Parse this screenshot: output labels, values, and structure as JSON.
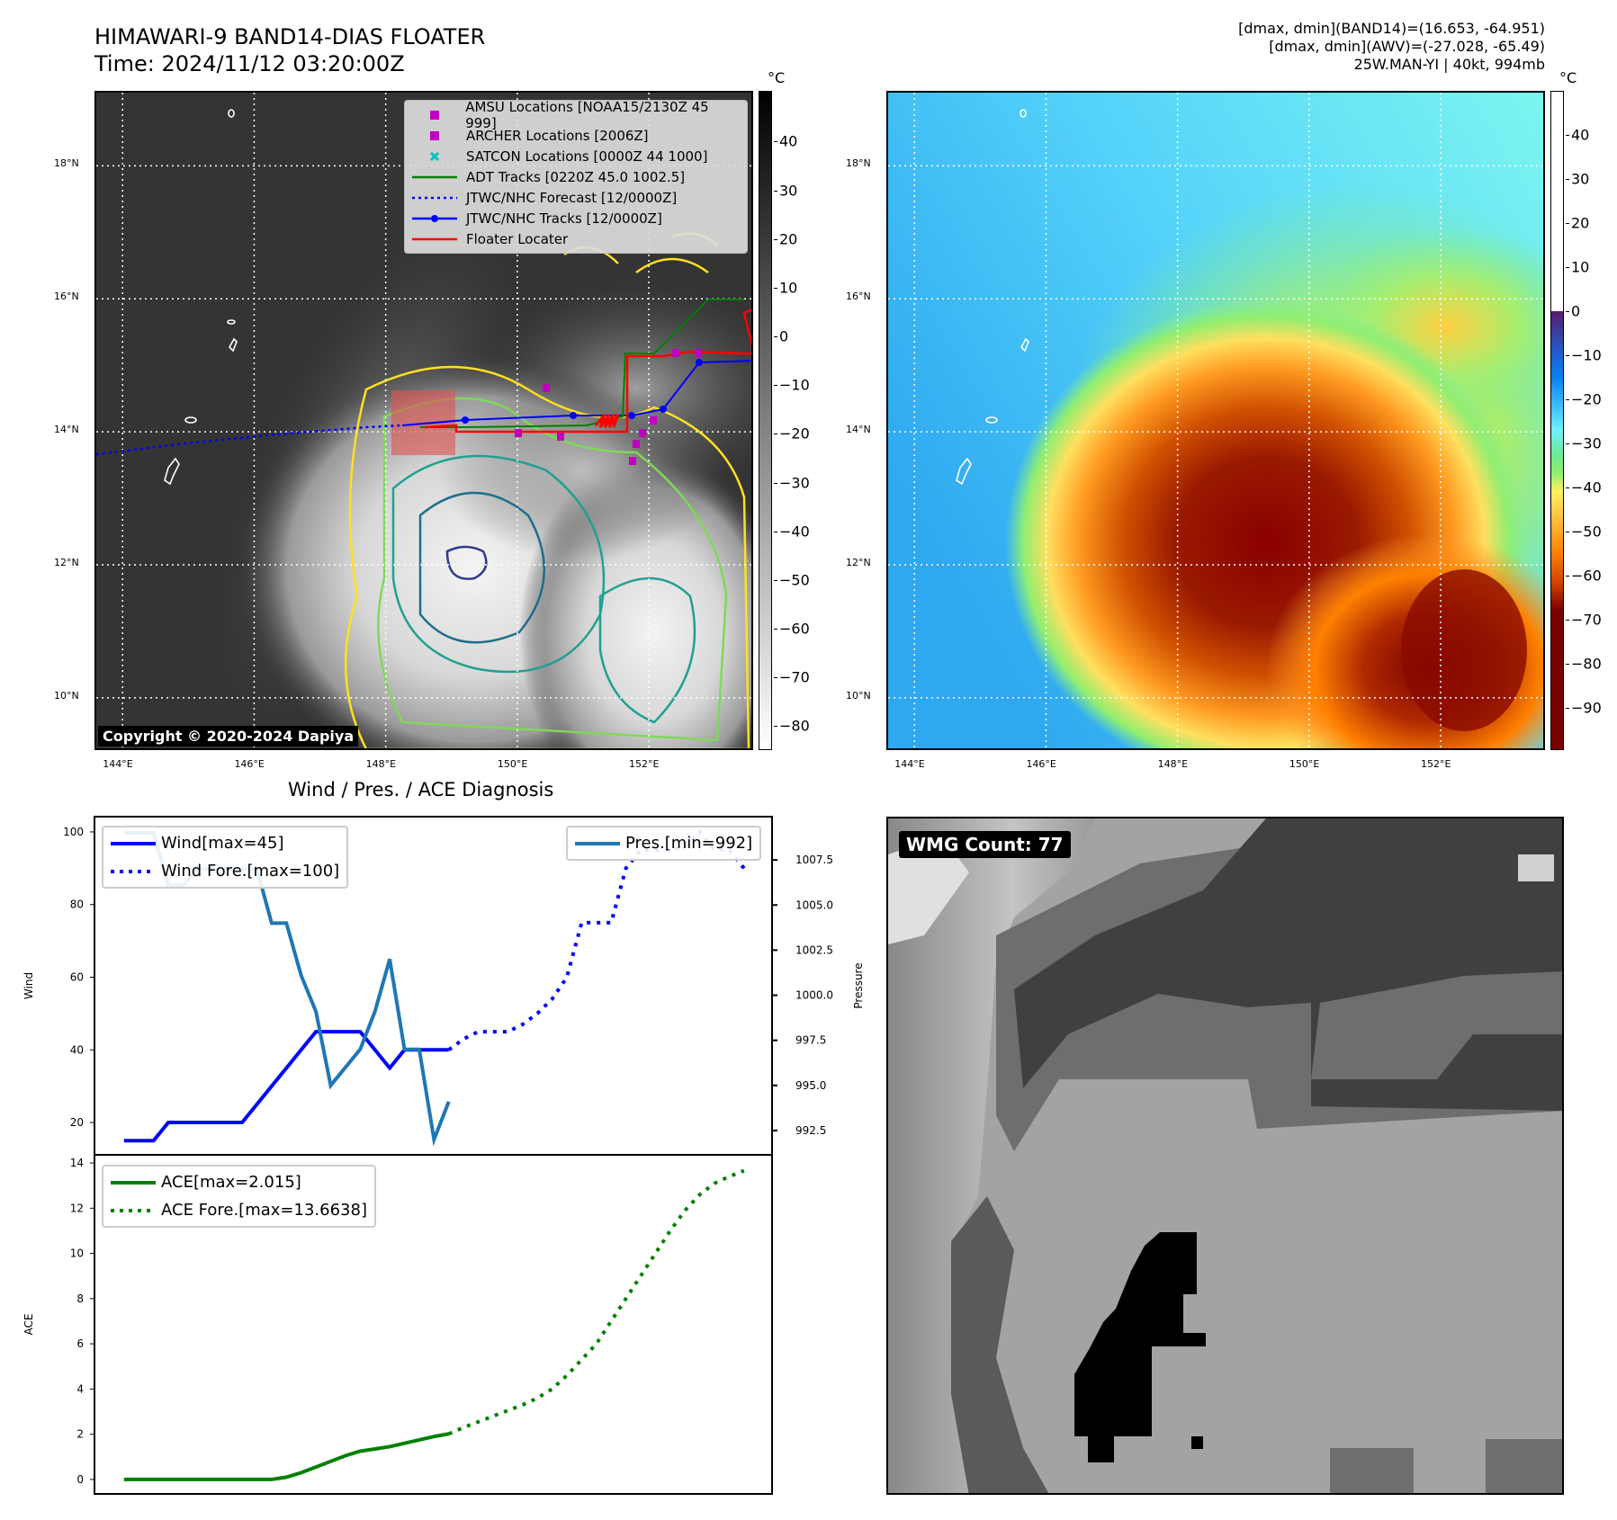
{
  "header": {
    "title": "HIMAWARI-9 BAND14-DIAS FLOATER",
    "time": "Time: 2024/11/12 03:20:00Z",
    "info_line1": "[dmax, dmin](BAND14)=(16.653, -64.951)",
    "info_line2": "[dmax, dmin](AWV)=(-27.028, -65.49)",
    "info_line3": "25W.MAN-YI | 40kt, 994mb"
  },
  "maps": {
    "lat_ticks": [
      {
        "v": 18,
        "label": "18°N"
      },
      {
        "v": 16,
        "label": "16°N"
      },
      {
        "v": 14,
        "label": "14°N"
      },
      {
        "v": 12,
        "label": "12°N"
      },
      {
        "v": 10,
        "label": "10°N"
      }
    ],
    "lon_ticks": [
      {
        "v": 144,
        "label": "144°E"
      },
      {
        "v": 146,
        "label": "146°E"
      },
      {
        "v": 148,
        "label": "148°E"
      },
      {
        "v": 150,
        "label": "150°E"
      },
      {
        "v": 152,
        "label": "152°E"
      }
    ],
    "lon_range": [
      143.6,
      153.6
    ],
    "lat_range": [
      9.2,
      19.1
    ],
    "left_colorbar": {
      "unit": "°C",
      "range": [
        50.4,
        -84.9
      ],
      "ticks": [
        "40",
        "30",
        "20",
        "10",
        "0",
        "−10",
        "−20",
        "−30",
        "−40",
        "−50",
        "−60",
        "−70",
        "−80"
      ],
      "tick_values": [
        40,
        30,
        20,
        10,
        0,
        -10,
        -20,
        -30,
        -40,
        -50,
        -60,
        -70,
        -80
      ]
    },
    "right_colorbar": {
      "unit": "°C",
      "range": [
        50.1,
        -99.7
      ],
      "ticks": [
        "40",
        "30",
        "20",
        "10",
        "0",
        "−10",
        "−20",
        "−30",
        "−40",
        "−50",
        "−60",
        "−70",
        "−80",
        "−90"
      ],
      "tick_values": [
        40,
        30,
        20,
        10,
        0,
        -10,
        -20,
        -30,
        -40,
        -50,
        -60,
        -70,
        -80,
        -90
      ]
    },
    "legend": [
      {
        "label": "AMSU Locations [NOAA15/2130Z 45 999]",
        "icon": "square",
        "color": "#c000c0"
      },
      {
        "label": "ARCHER Locations [2006Z]",
        "icon": "square",
        "color": "#c000c0"
      },
      {
        "label": "SATCON Locations [0000Z 44 1000]",
        "icon": "x",
        "color": "#00c0c0"
      },
      {
        "label": "ADT Tracks [0220Z 45.0 1002.5]",
        "icon": "line",
        "color": "#008000"
      },
      {
        "label": "JTWC/NHC Forecast [12/0000Z]",
        "icon": "dotted",
        "color": "#0000ff"
      },
      {
        "label": "JTWC/NHC Tracks [12/0000Z]",
        "icon": "line-dot",
        "color": "#0000ff"
      },
      {
        "label": "Floater Locater",
        "icon": "line",
        "color": "#ff0000"
      }
    ],
    "copyright": "Copyright © 2020-2024 Dapiya",
    "wmg_label": "WMG Count: 77"
  },
  "chart_data": [
    {
      "type": "line",
      "title": "Wind / Pres. / ACE Diagnosis",
      "ylabel": "Wind",
      "y2label": "Pressure",
      "xlim": [
        -2,
        43.9
      ],
      "ylim": [
        11.1,
        104.2
      ],
      "y2lim": [
        991.15,
        1009.9
      ],
      "yticks": [
        20,
        40,
        60,
        80,
        100
      ],
      "y2ticks": [
        992.5,
        995.0,
        997.5,
        1000.0,
        1002.5,
        1005.0,
        1007.5
      ],
      "y2tick_labels": [
        "992.5",
        "995.0",
        "997.5",
        "1000.0",
        "1002.5",
        "1005.0",
        "1007.5"
      ],
      "series": [
        {
          "name": "Wind[max=45]",
          "color": "#0000ff",
          "style": "solid",
          "axis": "y",
          "x": [
            0,
            1,
            2,
            3,
            4,
            5,
            6,
            7,
            8,
            9,
            10,
            11,
            12,
            13,
            14,
            15,
            16,
            17,
            18,
            19,
            20,
            21,
            22
          ],
          "values": [
            15,
            15,
            15,
            20,
            20,
            20,
            20,
            20,
            20,
            25,
            30,
            35,
            40,
            45,
            45,
            45,
            45,
            40,
            35,
            40,
            40,
            40,
            40
          ]
        },
        {
          "name": "Wind Fore.[max=100]",
          "color": "#0000ff",
          "style": "dotted",
          "axis": "y",
          "x": [
            22,
            23,
            24,
            25,
            26,
            27,
            28,
            29,
            30,
            31,
            32,
            33,
            34,
            35,
            36,
            37,
            38,
            39,
            40,
            41,
            42
          ],
          "values": [
            40,
            43,
            45,
            45,
            45,
            47,
            50,
            54,
            60,
            75,
            75,
            75,
            90,
            95,
            95,
            95,
            96,
            100,
            95,
            95,
            90
          ]
        },
        {
          "name": "Pres.[min=992]",
          "color": "#1f77b4",
          "style": "solid",
          "axis": "y2",
          "x": [
            0,
            1,
            2,
            3,
            4,
            5,
            6,
            7,
            8,
            9,
            10,
            11,
            12,
            13,
            14,
            15,
            16,
            17,
            18,
            19,
            20,
            21,
            22
          ],
          "values": [
            1009,
            1009,
            1009,
            1006.1,
            1006.1,
            1007,
            1007,
            1007,
            1007,
            1007,
            1004,
            1004,
            1001.1,
            999.1,
            995,
            996,
            997,
            999.1,
            1002,
            997,
            997,
            992,
            994.1
          ]
        }
      ],
      "legend_left": [
        "Wind[max=45]",
        "Wind Fore.[max=100]"
      ],
      "legend_right": [
        "Pres.[min=992]"
      ]
    },
    {
      "type": "line",
      "ylabel": "ACE",
      "xlim": [
        -2,
        43.9
      ],
      "ylim": [
        -0.64,
        14.36
      ],
      "yticks": [
        0,
        2,
        4,
        6,
        8,
        10,
        12,
        14
      ],
      "series": [
        {
          "name": "ACE[max=2.015]",
          "color": "#008000",
          "style": "solid",
          "x": [
            0,
            1,
            2,
            3,
            4,
            5,
            6,
            7,
            8,
            9,
            10,
            11,
            12,
            13,
            14,
            15,
            16,
            17,
            18,
            19,
            20,
            21,
            22
          ],
          "values": [
            0,
            0,
            0,
            0,
            0,
            0,
            0,
            0,
            0,
            0,
            0,
            0.1,
            0.3,
            0.55,
            0.8,
            1.05,
            1.25,
            1.35,
            1.45,
            1.6,
            1.75,
            1.9,
            2.015
          ]
        },
        {
          "name": "ACE Fore.[max=13.6638]",
          "color": "#008000",
          "style": "dotted",
          "x": [
            22,
            23,
            24,
            25,
            26,
            27,
            28,
            29,
            30,
            31,
            32,
            33,
            34,
            35,
            36,
            37,
            38,
            39,
            40,
            41,
            42
          ],
          "values": [
            2.015,
            2.3,
            2.55,
            2.8,
            3.05,
            3.3,
            3.6,
            4.0,
            4.6,
            5.3,
            6.0,
            7.0,
            8.0,
            9.0,
            10.0,
            11.0,
            11.9,
            12.6,
            13.1,
            13.4,
            13.66
          ]
        }
      ]
    }
  ]
}
